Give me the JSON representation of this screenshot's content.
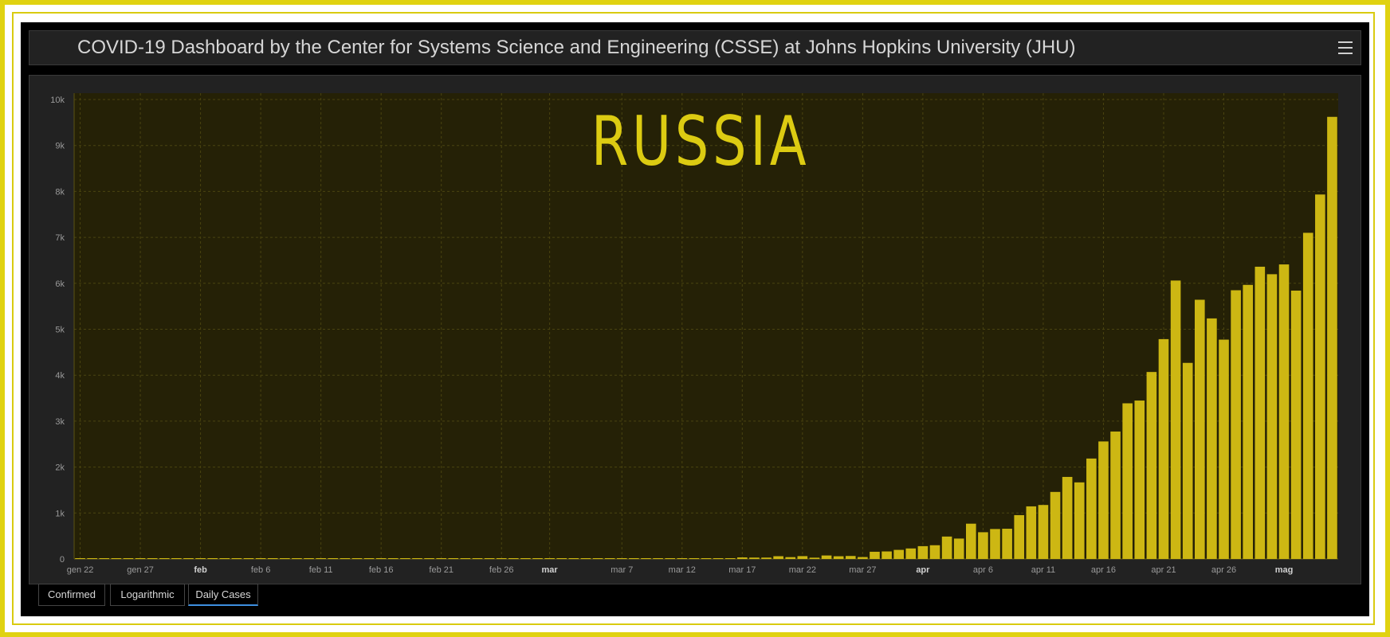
{
  "header": {
    "title": "COVID-19 Dashboard by the Center for Systems Science and Engineering (CSSE) at Johns Hopkins University (JHU)"
  },
  "tabs": [
    {
      "label": "Confirmed",
      "active": false
    },
    {
      "label": "Logarithmic",
      "active": false
    },
    {
      "label": "Daily Cases",
      "active": true
    }
  ],
  "colors": {
    "frame": "#e0d211",
    "bar": "#cdb713",
    "plot_background": "#252106",
    "overlay_text": "#dccb12"
  },
  "chart_data": {
    "type": "bar",
    "title": "RUSSIA",
    "xlabel": "",
    "ylabel": "",
    "ylim": [
      0,
      10000
    ],
    "y_ticks": [
      "0",
      "1k",
      "2k",
      "3k",
      "4k",
      "5k",
      "6k",
      "7k",
      "8k",
      "9k",
      "10k"
    ],
    "grid": true,
    "x_ticks": [
      {
        "label": "gen 22",
        "index": 0,
        "bold": false
      },
      {
        "label": "gen 27",
        "index": 5,
        "bold": false
      },
      {
        "label": "feb",
        "index": 10,
        "bold": true
      },
      {
        "label": "feb 6",
        "index": 15,
        "bold": false
      },
      {
        "label": "feb 11",
        "index": 20,
        "bold": false
      },
      {
        "label": "feb 16",
        "index": 25,
        "bold": false
      },
      {
        "label": "feb 21",
        "index": 30,
        "bold": false
      },
      {
        "label": "feb 26",
        "index": 35,
        "bold": false
      },
      {
        "label": "mar",
        "index": 39,
        "bold": true
      },
      {
        "label": "mar 7",
        "index": 45,
        "bold": false
      },
      {
        "label": "mar 12",
        "index": 50,
        "bold": false
      },
      {
        "label": "mar 17",
        "index": 55,
        "bold": false
      },
      {
        "label": "mar 22",
        "index": 60,
        "bold": false
      },
      {
        "label": "mar 27",
        "index": 65,
        "bold": false
      },
      {
        "label": "apr",
        "index": 70,
        "bold": true
      },
      {
        "label": "apr 6",
        "index": 75,
        "bold": false
      },
      {
        "label": "apr 11",
        "index": 80,
        "bold": false
      },
      {
        "label": "apr 16",
        "index": 85,
        "bold": false
      },
      {
        "label": "apr 21",
        "index": 90,
        "bold": false
      },
      {
        "label": "apr 26",
        "index": 95,
        "bold": false
      },
      {
        "label": "mag",
        "index": 100,
        "bold": true
      }
    ],
    "values": [
      0,
      0,
      0,
      0,
      0,
      0,
      0,
      0,
      0,
      0,
      2,
      0,
      0,
      0,
      0,
      0,
      0,
      0,
      0,
      0,
      0,
      0,
      0,
      0,
      0,
      0,
      0,
      0,
      0,
      0,
      0,
      0,
      0,
      0,
      0,
      0,
      0,
      0,
      0,
      0,
      0,
      0,
      0,
      0,
      17,
      0,
      0,
      3,
      0,
      0,
      0,
      14,
      8,
      3,
      0,
      34,
      30,
      30,
      60,
      40,
      62,
      28,
      76,
      59,
      65,
      42,
      157,
      164,
      198,
      229,
      279,
      299,
      488,
      444,
      768,
      582,
      652,
      658,
      954,
      1145,
      1175,
      1459,
      1786,
      1667,
      2186,
      2558,
      2774,
      3388,
      3448,
      4070,
      4785,
      6060,
      4268,
      5642,
      5236,
      4774,
      5849,
      5966,
      6361,
      6198,
      6411,
      5841,
      7099,
      7933,
      9623
    ]
  }
}
